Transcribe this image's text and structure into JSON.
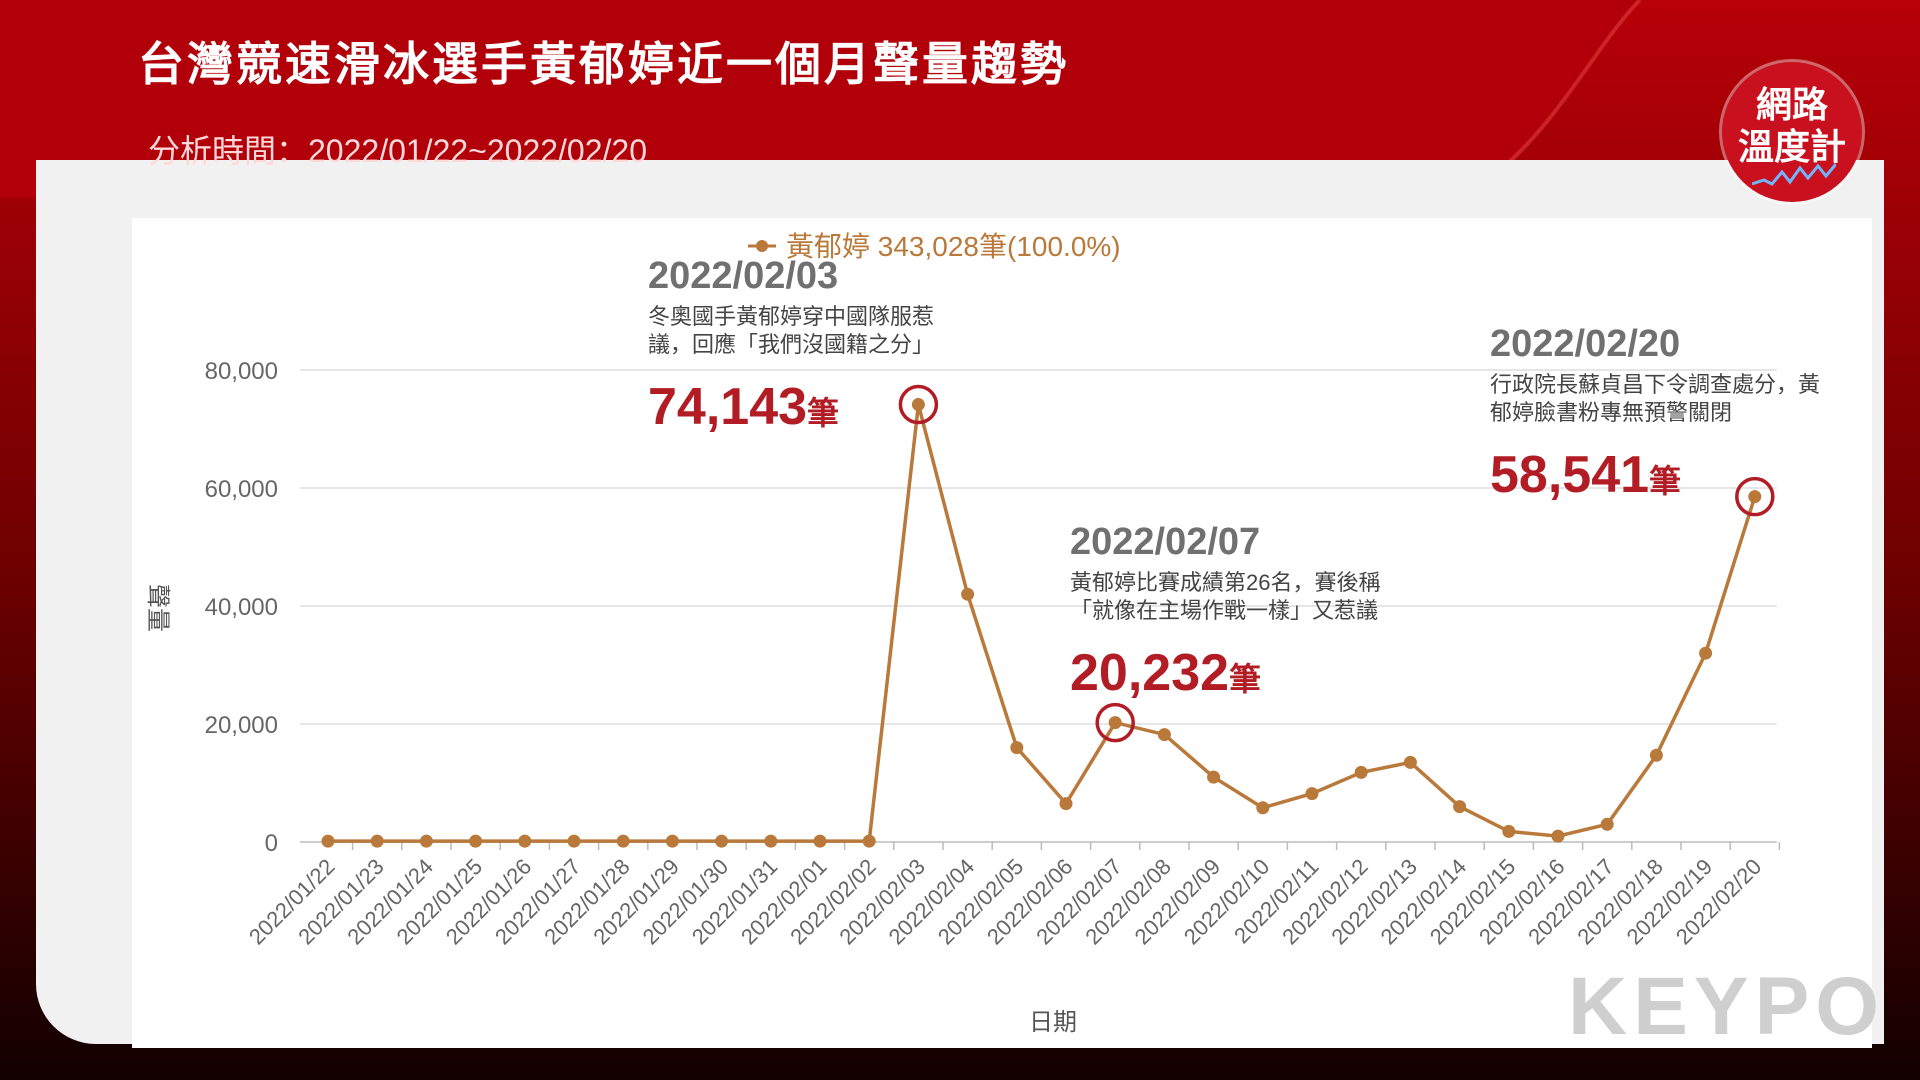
{
  "header": {
    "title": "台灣競速滑冰選手黃郁婷近一個月聲量趨勢",
    "subtitle": "分析時間：2022/01/22~2022/02/20"
  },
  "logo": {
    "line1": "網路",
    "line2": "溫度計"
  },
  "watermark": "KEYPO",
  "colors": {
    "line": "#b9793a",
    "highlight": "#b21c24",
    "annotation_date": "#707070"
  },
  "chart_data": {
    "type": "line",
    "legend": "黃郁婷 343,028筆(100.0%)",
    "xlabel": "日期",
    "ylabel": "聲量",
    "ylim": [
      0,
      80000
    ],
    "yticks": [
      "0",
      "20,000",
      "40,000",
      "60,000",
      "80,000"
    ],
    "categories": [
      "2022/01/22",
      "2022/01/23",
      "2022/01/24",
      "2022/01/25",
      "2022/01/26",
      "2022/01/27",
      "2022/01/28",
      "2022/01/29",
      "2022/01/30",
      "2022/01/31",
      "2022/02/01",
      "2022/02/02",
      "2022/02/03",
      "2022/02/04",
      "2022/02/05",
      "2022/02/06",
      "2022/02/07",
      "2022/02/08",
      "2022/02/09",
      "2022/02/10",
      "2022/02/11",
      "2022/02/12",
      "2022/02/13",
      "2022/02/14",
      "2022/02/15",
      "2022/02/16",
      "2022/02/17",
      "2022/02/18",
      "2022/02/19",
      "2022/02/20"
    ],
    "series": [
      {
        "name": "黃郁婷",
        "values": [
          150,
          150,
          150,
          150,
          150,
          150,
          150,
          150,
          150,
          150,
          150,
          150,
          74143,
          42000,
          16000,
          6500,
          20232,
          18200,
          11000,
          5800,
          8200,
          11800,
          13500,
          6000,
          1800,
          1000,
          3000,
          14700,
          32000,
          58541
        ]
      }
    ],
    "annotations": [
      {
        "date": "2022/02/03",
        "lines": [
          "冬奧國手黃郁婷穿中國隊服惹",
          "議，回應「我們沒國籍之分」"
        ],
        "value": "74,143",
        "unit": "筆",
        "index": 12
      },
      {
        "date": "2022/02/07",
        "lines": [
          "黃郁婷比賽成績第26名，賽後稱",
          "「就像在主場作戰一樣」又惹議"
        ],
        "value": "20,232",
        "unit": "筆",
        "index": 16
      },
      {
        "date": "2022/02/20",
        "lines": [
          "行政院長蘇貞昌下令調查處分，黃",
          "郁婷臉書粉專無預警關閉"
        ],
        "value": "58,541",
        "unit": "筆",
        "index": 29
      }
    ]
  }
}
